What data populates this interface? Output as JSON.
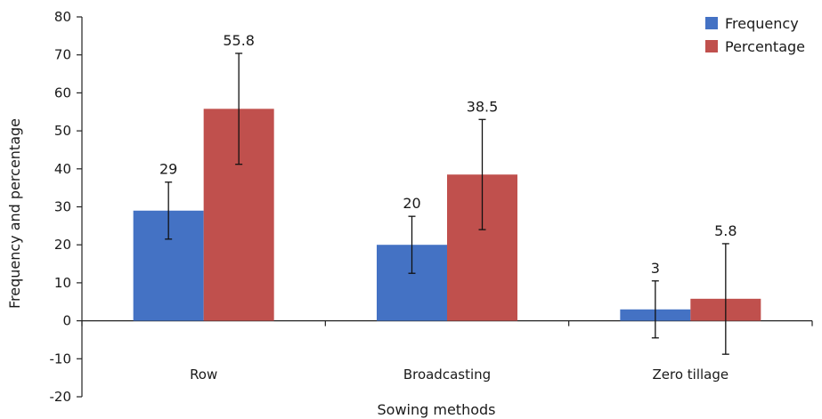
{
  "chart_data": {
    "type": "bar",
    "title": "",
    "xlabel": "Sowing methods",
    "ylabel": "Frequency and percentage",
    "ylim": [
      -20,
      80
    ],
    "yticks": [
      -20,
      -10,
      0,
      10,
      20,
      30,
      40,
      50,
      60,
      70,
      80
    ],
    "categories": [
      "Row",
      "Broadcasting",
      "Zero tillage"
    ],
    "series": [
      {
        "name": "Frequency",
        "color": "#4472C4",
        "values": [
          29,
          20,
          3
        ],
        "labels": [
          "29",
          "20",
          "3"
        ],
        "error_low": [
          21.5,
          12.5,
          -4.5
        ],
        "error_high": [
          36.5,
          27.5,
          10.5
        ]
      },
      {
        "name": "Percentage",
        "color": "#C0504D",
        "values": [
          55.8,
          38.5,
          5.8
        ],
        "labels": [
          "55.8",
          "38.5",
          "5.8"
        ],
        "error_low": [
          41.2,
          24.0,
          -8.8
        ],
        "error_high": [
          70.4,
          53.0,
          20.3
        ]
      }
    ],
    "grid": false,
    "legend_position": "top-right"
  }
}
